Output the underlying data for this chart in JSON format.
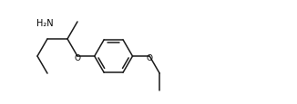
{
  "bg_color": "#ffffff",
  "line_color": "#1a1a1a",
  "text_color": "#000000",
  "line_width": 1.1,
  "font_size": 7.0,
  "figsize": [
    3.26,
    1.16
  ],
  "dpi": 100,
  "h2n_label": "H₂N",
  "o_label1": "O",
  "o_label2": "O"
}
